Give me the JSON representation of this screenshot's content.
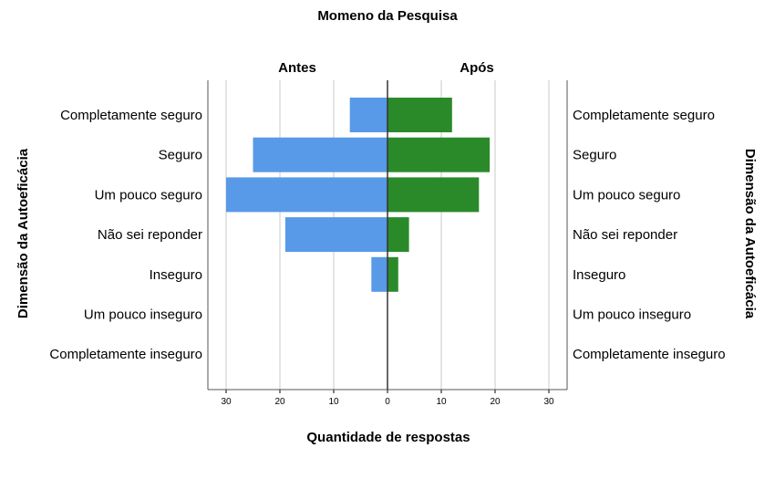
{
  "chart_data": {
    "type": "bar",
    "title": "Momeno da Pesquisa",
    "left_panel_title": "Antes",
    "right_panel_title": "Após",
    "xlabel": "Quantidade de respostas",
    "ylabel": "Dimensão da Autoeficácia",
    "categories": [
      "Completamente seguro",
      "Seguro",
      "Um pouco seguro",
      "Não sei reponder",
      "Inseguro",
      "Um pouco inseguro",
      "Completamente inseguro"
    ],
    "series": [
      {
        "name": "Antes",
        "values": [
          7,
          25,
          30,
          19,
          3,
          0,
          0
        ],
        "color": "#5899e8"
      },
      {
        "name": "Após",
        "values": [
          12,
          19,
          17,
          4,
          2,
          0,
          0
        ],
        "color": "#2a8a2a"
      }
    ],
    "xlim": [
      0,
      30
    ],
    "ticks": [
      30,
      20,
      10,
      0,
      10,
      20,
      30
    ],
    "tick_values": [
      -30,
      -20,
      -10,
      0,
      10,
      20,
      30
    ],
    "grid": true
  }
}
